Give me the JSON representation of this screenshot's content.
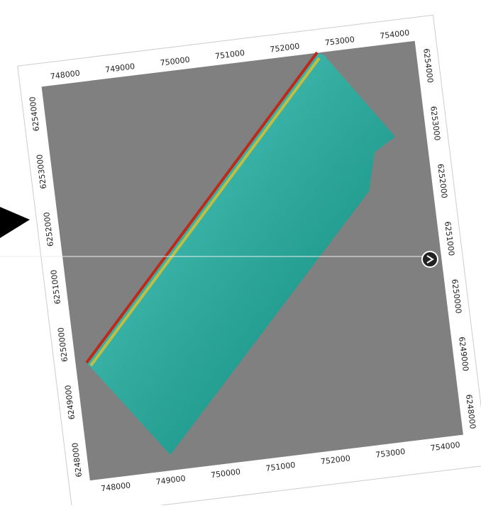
{
  "axes": {
    "top": [
      748000,
      749000,
      750000,
      751000,
      752000,
      753000,
      754000
    ],
    "bottom": [
      748000,
      749000,
      750000,
      751000,
      752000,
      753000,
      754000
    ],
    "left": [
      6254000,
      6253000,
      6252000,
      6251000,
      6250000,
      6249000,
      6248000
    ],
    "right": [
      6254000,
      6253000,
      6252000,
      6251000,
      6250000,
      6249000,
      6248000
    ]
  }
}
